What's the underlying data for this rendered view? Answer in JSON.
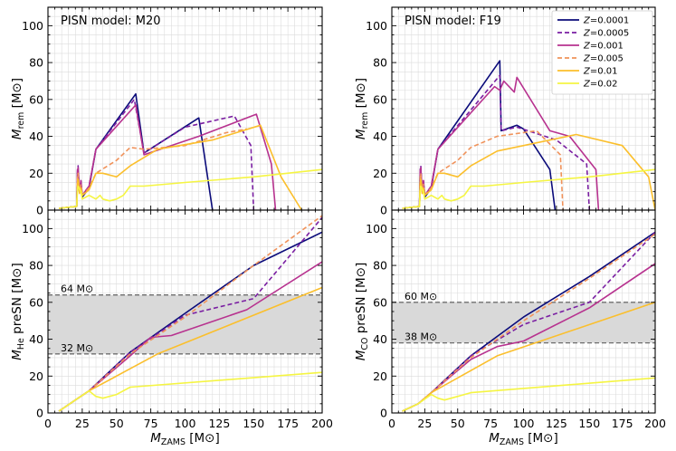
{
  "chart_data": [
    {
      "type": "line",
      "title": "PISN model: M20",
      "xlabel": "",
      "ylabel": "M_rem [M_⊙]",
      "xlim": [
        0,
        200
      ],
      "ylim": [
        0,
        110
      ],
      "xticks": [
        0,
        25,
        50,
        75,
        100,
        125,
        150,
        175,
        200
      ],
      "yticks": [
        0,
        20,
        40,
        60,
        80,
        100
      ],
      "xticklabels_visible": false,
      "grid": true,
      "series": [
        {
          "name": "Z=0.0001",
          "color": "#0b0b7a",
          "dash": "solid",
          "x": [
            8,
            21,
            21.5,
            22,
            23,
            24,
            25,
            30,
            35,
            64,
            70,
            110,
            120
          ],
          "y": [
            1,
            2,
            20,
            22,
            10,
            15,
            7,
            12,
            33,
            63,
            31,
            50,
            0
          ]
        },
        {
          "name": "Z=0.0005",
          "color": "#7a1fa2",
          "dash": "dashed",
          "x": [
            8,
            21,
            21.5,
            22,
            23,
            24,
            25,
            30,
            35,
            63,
            70,
            100,
            136,
            148,
            150
          ],
          "y": [
            1,
            2,
            22,
            24,
            10,
            16,
            8,
            13,
            33,
            60,
            31,
            45,
            51,
            35,
            0
          ]
        },
        {
          "name": "Z=0.001",
          "color": "#b7328f",
          "dash": "solid",
          "x": [
            8,
            21,
            21.5,
            22,
            23,
            24,
            25,
            30,
            35,
            64,
            70,
            110,
            152,
            163,
            166
          ],
          "y": [
            1,
            2,
            21,
            23,
            10,
            16,
            8,
            13,
            33,
            57,
            30,
            40,
            52,
            25,
            0
          ]
        },
        {
          "name": "Z=0.005",
          "color": "#f0925a",
          "dash": "dashed",
          "x": [
            8,
            21,
            21.5,
            22,
            23,
            24,
            25,
            30,
            35,
            50,
            60,
            70,
            100,
            130,
            145
          ],
          "y": [
            1,
            2,
            18,
            20,
            10,
            14,
            8,
            12,
            20,
            27,
            34,
            33,
            35,
            42,
            44
          ]
        },
        {
          "name": "Z=0.01",
          "color": "#fbbf2c",
          "dash": "solid",
          "x": [
            8,
            21,
            21.5,
            22,
            23,
            24,
            25,
            30,
            35,
            40,
            50,
            60,
            80,
            120,
            155,
            170,
            185
          ],
          "y": [
            1,
            2,
            15,
            17,
            9,
            12,
            8,
            11,
            20,
            20,
            18,
            24,
            33,
            38,
            46,
            18,
            0
          ]
        },
        {
          "name": "Z=0.02",
          "color": "#f5f542",
          "dash": "solid",
          "x": [
            8,
            21,
            21.5,
            22,
            24,
            25,
            30,
            35,
            38,
            40,
            45,
            50,
            55,
            60,
            70,
            100,
            150,
            200
          ],
          "y": [
            1,
            2,
            11,
            13,
            10,
            6,
            8,
            6,
            8,
            6,
            5,
            6,
            8,
            13,
            13,
            15,
            18,
            22
          ]
        }
      ]
    },
    {
      "type": "line",
      "title": "PISN model: F19",
      "xlabel": "",
      "ylabel": "M_rem [M_⊙]",
      "xlim": [
        0,
        200
      ],
      "ylim": [
        0,
        110
      ],
      "xticks": [
        0,
        25,
        50,
        75,
        100,
        125,
        150,
        175,
        200
      ],
      "yticks": [
        0,
        20,
        40,
        60,
        80,
        100
      ],
      "xticklabels_visible": false,
      "grid": true,
      "legend_position": "top-right",
      "series": [
        {
          "name": "Z=0.0001",
          "color": "#0b0b7a",
          "dash": "solid",
          "x": [
            8,
            21,
            21.5,
            22,
            23,
            24,
            25,
            30,
            35,
            82,
            83,
            95,
            100,
            120,
            124
          ],
          "y": [
            1,
            2,
            20,
            22,
            10,
            15,
            7,
            12,
            33,
            81,
            43,
            46,
            44,
            22,
            0
          ]
        },
        {
          "name": "Z=0.0005",
          "color": "#7a1fa2",
          "dash": "dashed",
          "x": [
            8,
            21,
            21.5,
            22,
            23,
            24,
            25,
            30,
            35,
            82,
            83,
            95,
            125,
            148,
            150
          ],
          "y": [
            1,
            2,
            22,
            24,
            10,
            16,
            8,
            13,
            33,
            73,
            43,
            45,
            38,
            25,
            0
          ]
        },
        {
          "name": "Z=0.001",
          "color": "#b7328f",
          "dash": "solid",
          "x": [
            8,
            21,
            21.5,
            22,
            23,
            24,
            25,
            30,
            35,
            78,
            82,
            85,
            93,
            95,
            120,
            135,
            155,
            157
          ],
          "y": [
            1,
            2,
            21,
            23,
            10,
            16,
            8,
            13,
            33,
            67,
            65,
            70,
            64,
            72,
            43,
            40,
            22,
            0
          ]
        },
        {
          "name": "Z=0.005",
          "color": "#f0925a",
          "dash": "dashed",
          "x": [
            8,
            21,
            21.5,
            22,
            23,
            24,
            25,
            30,
            35,
            50,
            60,
            80,
            110,
            128,
            130
          ],
          "y": [
            1,
            2,
            18,
            20,
            10,
            14,
            8,
            12,
            20,
            27,
            34,
            40,
            43,
            30,
            0
          ]
        },
        {
          "name": "Z=0.01",
          "color": "#fbbf2c",
          "dash": "solid",
          "x": [
            8,
            21,
            21.5,
            22,
            23,
            24,
            25,
            30,
            35,
            40,
            50,
            60,
            80,
            140,
            175,
            195,
            200
          ],
          "y": [
            1,
            2,
            15,
            17,
            9,
            12,
            8,
            11,
            20,
            20,
            18,
            24,
            32,
            41,
            35,
            18,
            0
          ]
        },
        {
          "name": "Z=0.02",
          "color": "#f5f542",
          "dash": "solid",
          "x": [
            8,
            21,
            21.5,
            22,
            24,
            25,
            30,
            35,
            38,
            40,
            45,
            50,
            55,
            60,
            70,
            100,
            150,
            200
          ],
          "y": [
            1,
            2,
            11,
            13,
            10,
            6,
            8,
            6,
            8,
            6,
            5,
            6,
            8,
            13,
            13,
            15,
            18,
            22
          ]
        }
      ]
    },
    {
      "type": "line",
      "title": "",
      "xlabel": "M_ZAMS [M_⊙]",
      "ylabel": "M_He preSN [M_⊙]",
      "xlim": [
        0,
        200
      ],
      "ylim": [
        0,
        110
      ],
      "xticks": [
        0,
        25,
        50,
        75,
        100,
        125,
        150,
        175,
        200
      ],
      "yticks": [
        0,
        20,
        40,
        60,
        80,
        100
      ],
      "grid": true,
      "band": {
        "low": 32,
        "high": 64,
        "low_label": "32 M_⊙",
        "high_label": "64 M_⊙"
      },
      "series": [
        {
          "name": "Z=0.0001",
          "color": "#0b0b7a",
          "dash": "solid",
          "x": [
            8,
            20,
            30,
            60,
            100,
            150,
            200
          ],
          "y": [
            1,
            7,
            12,
            33,
            54,
            80,
            98
          ]
        },
        {
          "name": "Z=0.0005",
          "color": "#7a1fa2",
          "dash": "dashed",
          "x": [
            8,
            20,
            30,
            60,
            100,
            150,
            200
          ],
          "y": [
            1,
            7,
            12,
            33,
            53,
            62,
            106
          ]
        },
        {
          "name": "Z=0.001",
          "color": "#b7328f",
          "dash": "solid",
          "x": [
            8,
            20,
            30,
            60,
            75,
            90,
            145,
            200
          ],
          "y": [
            1,
            7,
            12,
            31,
            41,
            42,
            56,
            82
          ]
        },
        {
          "name": "Z=0.005",
          "color": "#f0925a",
          "dash": "dashed",
          "x": [
            8,
            20,
            30,
            60,
            100,
            150,
            200
          ],
          "y": [
            1,
            7,
            12,
            32,
            52,
            80,
            107
          ]
        },
        {
          "name": "Z=0.01",
          "color": "#fbbf2c",
          "dash": "solid",
          "x": [
            8,
            20,
            30,
            60,
            80,
            200
          ],
          "y": [
            1,
            7,
            12,
            24,
            32,
            68
          ]
        },
        {
          "name": "Z=0.02",
          "color": "#f5f542",
          "dash": "solid",
          "x": [
            8,
            20,
            30,
            35,
            40,
            50,
            60,
            200
          ],
          "y": [
            1,
            7,
            12,
            9,
            8,
            10,
            14,
            22
          ]
        }
      ]
    },
    {
      "type": "line",
      "title": "",
      "xlabel": "M_ZAMS [M_⊙]",
      "ylabel": "M_CO preSN [M_⊙]",
      "xlim": [
        0,
        200
      ],
      "ylim": [
        0,
        110
      ],
      "xticks": [
        0,
        25,
        50,
        75,
        100,
        125,
        150,
        175,
        200
      ],
      "yticks": [
        0,
        20,
        40,
        60,
        80,
        100
      ],
      "grid": true,
      "band": {
        "low": 38,
        "high": 60,
        "low_label": "38 M_⊙",
        "high_label": "60 M_⊙"
      },
      "series": [
        {
          "name": "Z=0.0001",
          "color": "#0b0b7a",
          "dash": "solid",
          "x": [
            8,
            20,
            30,
            60,
            100,
            150,
            200
          ],
          "y": [
            1,
            5,
            11,
            31,
            52,
            74,
            98
          ]
        },
        {
          "name": "Z=0.0005",
          "color": "#7a1fa2",
          "dash": "dashed",
          "x": [
            8,
            20,
            30,
            60,
            100,
            150,
            200
          ],
          "y": [
            1,
            5,
            11,
            31,
            48,
            60,
            98
          ]
        },
        {
          "name": "Z=0.001",
          "color": "#b7328f",
          "dash": "solid",
          "x": [
            8,
            20,
            30,
            60,
            80,
            100,
            150,
            200
          ],
          "y": [
            1,
            5,
            11,
            29,
            36,
            39,
            57,
            81
          ]
        },
        {
          "name": "Z=0.005",
          "color": "#f0925a",
          "dash": "dashed",
          "x": [
            8,
            20,
            30,
            60,
            100,
            150,
            200
          ],
          "y": [
            1,
            5,
            11,
            30,
            50,
            73,
            97
          ]
        },
        {
          "name": "Z=0.01",
          "color": "#fbbf2c",
          "dash": "solid",
          "x": [
            8,
            20,
            30,
            60,
            80,
            200
          ],
          "y": [
            1,
            5,
            11,
            23,
            31,
            60
          ]
        },
        {
          "name": "Z=0.02",
          "color": "#f5f542",
          "dash": "solid",
          "x": [
            8,
            20,
            30,
            35,
            40,
            50,
            60,
            200
          ],
          "y": [
            1,
            5,
            10,
            8,
            7,
            9,
            11,
            19
          ]
        }
      ]
    }
  ]
}
